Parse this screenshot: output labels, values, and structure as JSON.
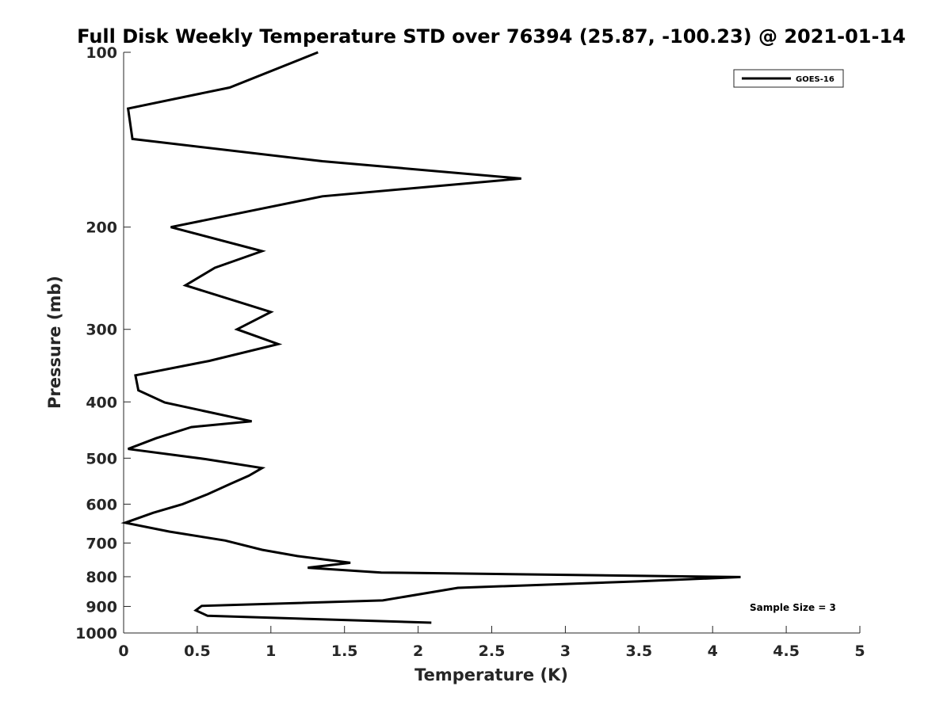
{
  "chart_data": {
    "type": "line",
    "title": "Full Disk Weekly Temperature STD over 76394 (25.87, -100.23) @ 2021-01-14",
    "xlabel": "Temperature (K)",
    "ylabel": "Pressure (mb)",
    "xlim": [
      0,
      5
    ],
    "ylim": [
      100,
      1000
    ],
    "yscale": "log",
    "y_reversed": true,
    "xticks": [
      "0",
      "0.5",
      "1",
      "1.5",
      "2",
      "2.5",
      "3",
      "3.5",
      "4",
      "4.5",
      "5"
    ],
    "yticks": [
      "100",
      "200",
      "300",
      "400",
      "500",
      "600",
      "700",
      "800",
      "900",
      "1000"
    ],
    "grid": false,
    "legend_position": "top-right",
    "line_color": "#000000",
    "series": [
      {
        "name": "GOES-16",
        "x": [
          1.32,
          0.72,
          0.03,
          0.06,
          1.35,
          2.7,
          1.35,
          0.32,
          0.94,
          0.62,
          0.42,
          1.0,
          0.77,
          1.05,
          0.58,
          0.08,
          0.1,
          0.28,
          0.87,
          0.46,
          0.22,
          0.03,
          0.56,
          0.94,
          0.85,
          0.73,
          0.57,
          0.4,
          0.2,
          0.01,
          0.31,
          0.69,
          0.94,
          1.18,
          1.54,
          1.25,
          1.75,
          4.19,
          3.49,
          2.27,
          1.76,
          0.53,
          0.49,
          0.57,
          2.09
        ],
        "y": [
          100,
          115,
          125,
          141,
          154,
          165,
          177,
          200,
          220,
          235,
          252,
          280,
          300,
          318,
          340,
          360,
          382,
          401,
          432,
          442,
          462,
          482,
          502,
          520,
          536,
          553,
          577,
          600,
          621,
          646,
          669,
          693,
          719,
          737,
          757,
          772,
          787,
          801,
          815,
          836,
          879,
          898,
          914,
          934,
          960
        ]
      }
    ],
    "legend": [
      "GOES-16"
    ],
    "annotation": "Sample Size = 3"
  }
}
